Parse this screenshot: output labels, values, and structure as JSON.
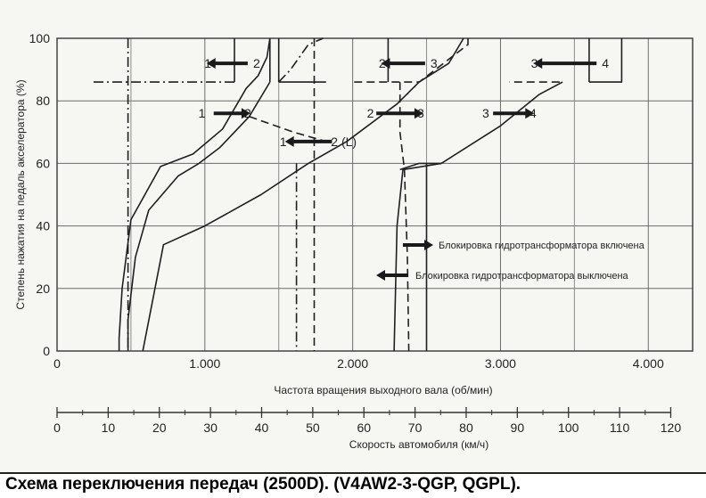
{
  "caption": "Схема переключения передач (2500D). (V4AW2-3-QGP, QGPL).",
  "chart_data": {
    "type": "line",
    "ylabel": "Степень нажатия на педаль акселератора (%)",
    "xlabel": "Частота вращения выходного вала (об/мин)",
    "ylim": [
      0,
      100
    ],
    "xlim": [
      0,
      4300
    ],
    "y_ticks": [
      "0",
      "20",
      "40",
      "60",
      "80",
      "100"
    ],
    "x_ticks": [
      {
        "value": 0,
        "label": "0"
      },
      {
        "value": 1000,
        "label": "1.000"
      },
      {
        "value": 2000,
        "label": "2.000"
      },
      {
        "value": 3000,
        "label": "3.000"
      },
      {
        "value": 4000,
        "label": "4.000"
      }
    ],
    "speed_axis": {
      "label": "Скорость автомобиля (км/ч)",
      "range_kmh": [
        0,
        120
      ],
      "rpm_per_kmh": 34.6,
      "ticks": [
        "0",
        "10",
        "20",
        "30",
        "40",
        "50",
        "60",
        "70",
        "80",
        "90",
        "100",
        "110",
        "120"
      ]
    },
    "grid": true,
    "series": [
      {
        "style": "solid",
        "points": [
          [
            1440,
            100
          ],
          [
            1420,
            94
          ],
          [
            1360,
            88
          ],
          [
            1280,
            84
          ],
          [
            1120,
            71
          ],
          [
            920,
            63
          ],
          [
            700,
            59
          ],
          [
            500,
            42
          ],
          [
            440,
            20
          ],
          [
            420,
            4
          ],
          [
            420,
            0
          ]
        ]
      },
      {
        "style": "solid",
        "points": [
          [
            1440,
            100
          ],
          [
            1440,
            86
          ]
        ]
      },
      {
        "style": "solid",
        "points": [
          [
            1200,
            100
          ],
          [
            1200,
            86
          ]
        ]
      },
      {
        "style": "dashdot",
        "points": [
          [
            480,
            100
          ],
          [
            480,
            0
          ]
        ]
      },
      {
        "style": "dashdot",
        "points": [
          [
            1200,
            86
          ],
          [
            240,
            86
          ]
        ]
      },
      {
        "style": "solid",
        "points": [
          [
            1440,
            86
          ],
          [
            1300,
            75
          ],
          [
            1100,
            65
          ],
          [
            960,
            60
          ],
          [
            820,
            56
          ],
          [
            620,
            45
          ],
          [
            530,
            30
          ],
          [
            480,
            10
          ],
          [
            480,
            0
          ]
        ]
      },
      {
        "style": "dashdot",
        "points": [
          [
            1500,
            86
          ],
          [
            1580,
            90
          ],
          [
            1700,
            98
          ],
          [
            1800,
            100
          ]
        ]
      },
      {
        "style": "dashed",
        "points": [
          [
            1300,
            75
          ],
          [
            1600,
            70
          ],
          [
            1820,
            67
          ]
        ]
      },
      {
        "style": "solid",
        "points": [
          [
            1500,
            100
          ],
          [
            1500,
            86
          ]
        ]
      },
      {
        "style": "solid",
        "points": [
          [
            1820,
            86
          ],
          [
            1500,
            86
          ]
        ]
      },
      {
        "style": "dashed",
        "points": [
          [
            2780,
            100
          ],
          [
            2780,
            98
          ],
          [
            2450,
            86
          ],
          [
            2000,
            86
          ]
        ]
      },
      {
        "style": "solid",
        "points": [
          [
            2750,
            100
          ],
          [
            2650,
            92
          ],
          [
            2450,
            86
          ],
          [
            2300,
            79
          ],
          [
            1960,
            67
          ],
          [
            1700,
            60
          ],
          [
            1380,
            50
          ],
          [
            1000,
            40
          ],
          [
            720,
            34
          ],
          [
            580,
            0
          ]
        ]
      },
      {
        "style": "dashdot",
        "points": [
          [
            1620,
            60
          ],
          [
            1620,
            0
          ]
        ]
      },
      {
        "style": "dashed",
        "points": [
          [
            1740,
            100
          ],
          [
            1740,
            0
          ]
        ]
      },
      {
        "style": "solid",
        "points": [
          [
            2240,
            100
          ],
          [
            2240,
            86
          ]
        ]
      },
      {
        "style": "dashed",
        "points": [
          [
            2320,
            86
          ],
          [
            2320,
            76
          ],
          [
            2320,
            70
          ],
          [
            2350,
            58
          ],
          [
            2370,
            30
          ],
          [
            2380,
            0
          ]
        ]
      },
      {
        "style": "solid",
        "points": [
          [
            3600,
            100
          ],
          [
            3600,
            86
          ]
        ]
      },
      {
        "style": "dashed",
        "points": [
          [
            3400,
            86
          ],
          [
            3060,
            86
          ]
        ]
      },
      {
        "style": "solid",
        "points": [
          [
            3420,
            86
          ],
          [
            3260,
            82
          ],
          [
            3000,
            72
          ],
          [
            2800,
            66
          ],
          [
            2600,
            60
          ],
          [
            2340,
            58
          ],
          [
            2300,
            40
          ],
          [
            2280,
            0
          ]
        ]
      },
      {
        "style": "solid",
        "points": [
          [
            2500,
            60
          ],
          [
            2500,
            0
          ]
        ]
      },
      {
        "style": "solid",
        "points": [
          [
            3820,
            100
          ],
          [
            3820,
            86
          ],
          [
            3600,
            86
          ]
        ]
      },
      {
        "style": "solid",
        "points": [
          [
            2320,
            58
          ],
          [
            2450,
            60
          ],
          [
            2600,
            60
          ]
        ]
      }
    ],
    "annotations": [
      {
        "text": "1",
        "x": 1020,
        "y": 92
      },
      {
        "text": "2",
        "x": 1350,
        "y": 92
      },
      {
        "text": "1",
        "x": 980,
        "y": 76
      },
      {
        "text": "2",
        "x": 1290,
        "y": 76
      },
      {
        "text": "1",
        "x": 1530,
        "y": 67
      },
      {
        "text": "2 (L)",
        "x": 1940,
        "y": 67
      },
      {
        "text": "2",
        "x": 2200,
        "y": 92
      },
      {
        "text": "3",
        "x": 2550,
        "y": 92
      },
      {
        "text": "2",
        "x": 2120,
        "y": 76
      },
      {
        "text": "3",
        "x": 2460,
        "y": 76
      },
      {
        "text": "3",
        "x": 3230,
        "y": 92
      },
      {
        "text": "4",
        "x": 3710,
        "y": 92
      },
      {
        "text": "3",
        "x": 2900,
        "y": 76
      },
      {
        "text": "4",
        "x": 3220,
        "y": 76
      }
    ],
    "arrows": [
      {
        "from": [
          1290,
          92
        ],
        "to": [
          1060,
          92
        ]
      },
      {
        "from": [
          1060,
          76
        ],
        "to": [
          1260,
          76
        ]
      },
      {
        "from": [
          1860,
          67
        ],
        "to": [
          1590,
          67
        ]
      },
      {
        "from": [
          2490,
          92
        ],
        "to": [
          2240,
          92
        ]
      },
      {
        "from": [
          2160,
          76
        ],
        "to": [
          2430,
          76
        ]
      },
      {
        "from": [
          3650,
          92
        ],
        "to": [
          3270,
          92
        ]
      },
      {
        "from": [
          2950,
          76
        ],
        "to": [
          3180,
          76
        ]
      }
    ],
    "legend": [
      {
        "text": "Блокировка гидротрансформатора включена",
        "arrow": "right"
      },
      {
        "text": "Блокировка гидротрансформатора выключена",
        "arrow": "left"
      }
    ]
  }
}
